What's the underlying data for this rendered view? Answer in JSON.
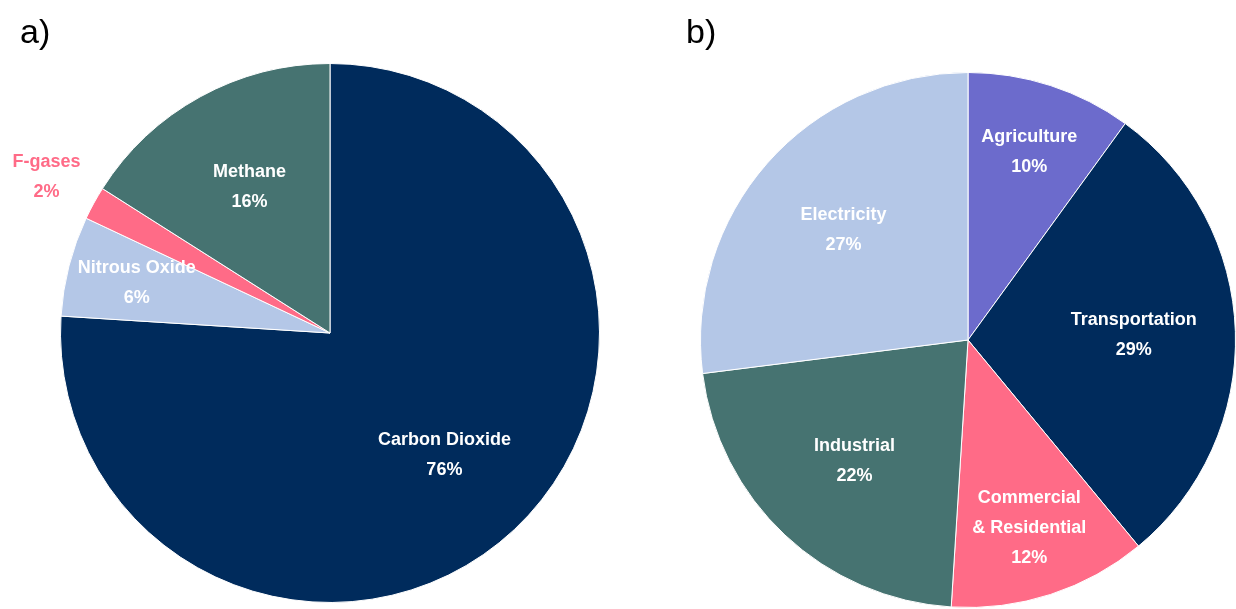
{
  "chart_data": [
    {
      "type": "pie",
      "title": "a)",
      "categories": [
        "Carbon Dioxide",
        "Nitrous Oxide",
        "F-gases",
        "Methane"
      ],
      "values": [
        76,
        6,
        2,
        16
      ],
      "value_labels": [
        "76%",
        "6%",
        "2%",
        "16%"
      ],
      "colors": [
        "#002b5c",
        "#b4c7e7",
        "#ff6b87",
        "#467371"
      ],
      "legend": false
    },
    {
      "type": "pie",
      "title": "b)",
      "categories": [
        "Agriculture",
        "Transportation",
        "Commercial & Residential",
        "Industrial",
        "Electricity"
      ],
      "values": [
        10,
        29,
        12,
        22,
        27
      ],
      "value_labels": [
        "10%",
        "29%",
        "12%",
        "22%",
        "27%"
      ],
      "colors": [
        "#6c6bcc",
        "#002b5c",
        "#ff6b87",
        "#467371",
        "#b4c7e7"
      ],
      "legend": false
    }
  ]
}
